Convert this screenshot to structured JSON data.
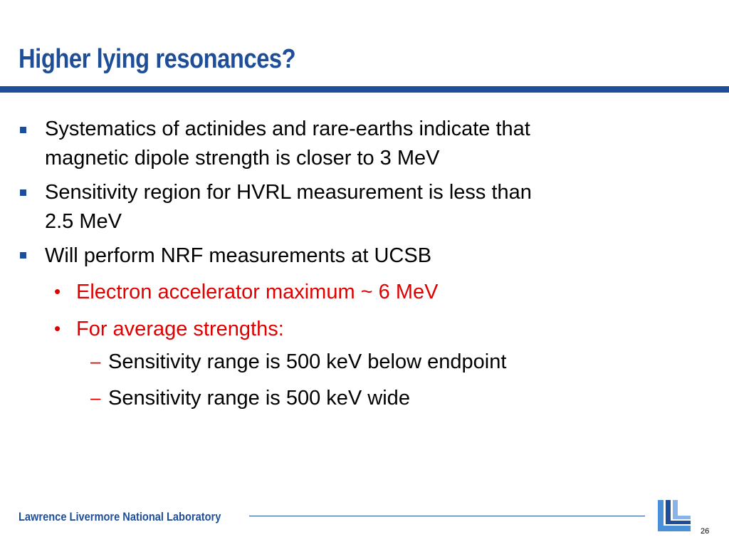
{
  "slide": {
    "title": "Higher lying resonances?",
    "page_number": "26"
  },
  "bullets": [
    {
      "lines": [
        "Systematics of actinides and rare-earths indicate that",
        "magnetic dipole strength is closer to 3 MeV"
      ]
    },
    {
      "lines": [
        "Sensitivity region for HVRL measurement is less than",
        "2.5 MeV"
      ]
    },
    {
      "lines": [
        "Will perform NRF measurements at UCSB"
      ],
      "sub_bullets": [
        {
          "text": "Electron accelerator maximum ~ 6 MeV"
        },
        {
          "text": "For average strengths:",
          "sub_bullets": [
            {
              "text": "Sensitivity range is 500 keV below endpoint"
            },
            {
              "text": "Sensitivity range is 500 keV wide"
            }
          ]
        }
      ]
    }
  ],
  "footer": {
    "organization": "Lawrence Livermore National Laboratory",
    "logo_icon": "llnl-logo-icon"
  },
  "colors": {
    "title_blue": "#1f4e99",
    "highlight_red": "#e00000"
  }
}
